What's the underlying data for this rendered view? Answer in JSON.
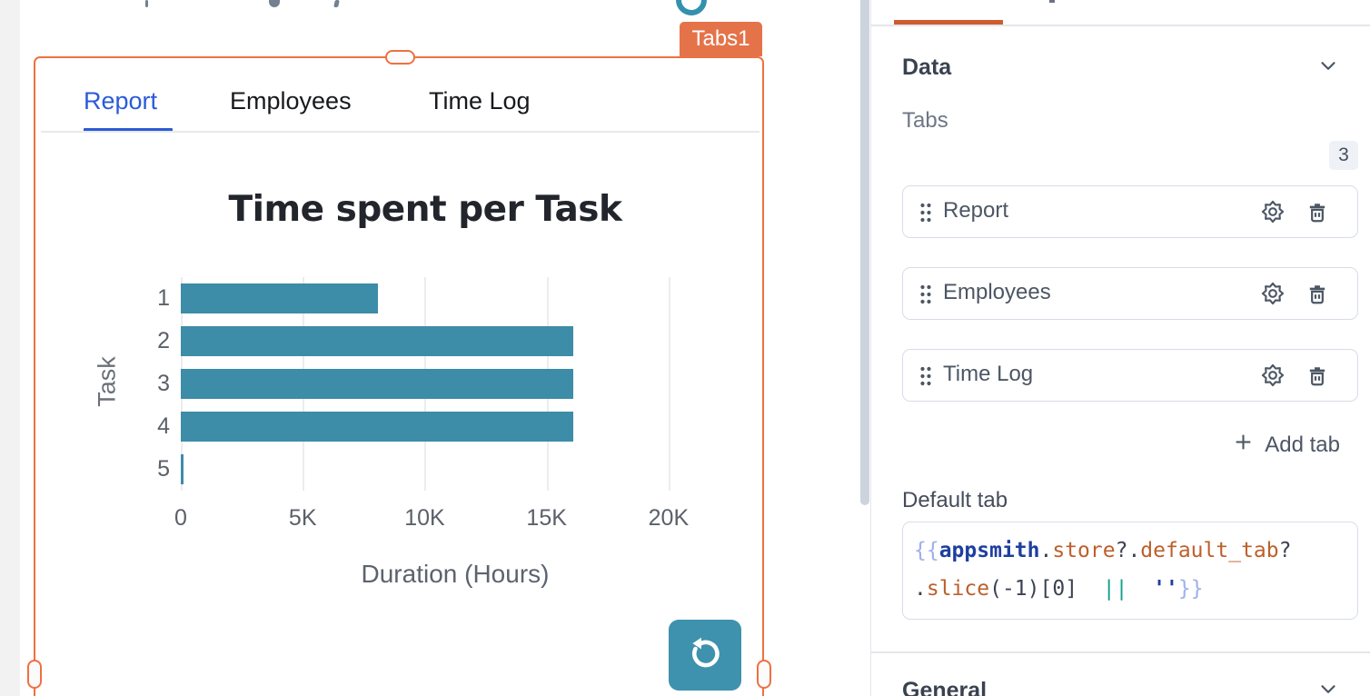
{
  "canvas": {
    "widget_badge_label": "Tabs1",
    "widget_tabs": [
      {
        "label": "Report",
        "active": true
      },
      {
        "label": "Employees",
        "active": false
      },
      {
        "label": "Time Log",
        "active": false
      }
    ]
  },
  "chart_data": {
    "type": "bar",
    "orientation": "horizontal",
    "title": "Time spent per Task",
    "xlabel": "Duration (Hours)",
    "ylabel": "Task",
    "categories": [
      "1",
      "2",
      "3",
      "4",
      "5"
    ],
    "values": [
      8100,
      16100,
      16100,
      16100,
      60
    ],
    "xticks": [
      {
        "label": "0",
        "value": 0
      },
      {
        "label": "5K",
        "value": 5000
      },
      {
        "label": "10K",
        "value": 10000
      },
      {
        "label": "15K",
        "value": 15000
      },
      {
        "label": "20K",
        "value": 20000
      }
    ],
    "xlim": [
      0,
      22500
    ],
    "grid": true,
    "legend": false,
    "bar_color": "#3d8ca8"
  },
  "panel": {
    "data_section_label": "Data",
    "tabs_field_label": "Tabs",
    "tabs_count": "3",
    "tab_items": [
      {
        "label": "Report"
      },
      {
        "label": "Employees"
      },
      {
        "label": "Time Log"
      }
    ],
    "add_tab_label": "Add tab",
    "default_tab_label": "Default tab",
    "default_tab_code": {
      "raw": "{{appsmith.store?.default_tab?.slice(-1)[0]  ||  ''}}",
      "lines": [
        [
          {
            "t": "{{",
            "c": "brace"
          },
          {
            "t": "appsmith",
            "c": "navy"
          },
          {
            "t": ".",
            "c": "dark"
          },
          {
            "t": "store",
            "c": "orange"
          },
          {
            "t": "?.",
            "c": "dark"
          },
          {
            "t": "default_tab",
            "c": "orange"
          },
          {
            "t": "?",
            "c": "dark"
          }
        ],
        [
          {
            "t": ".",
            "c": "dark"
          },
          {
            "t": "slice",
            "c": "orange"
          },
          {
            "t": "(-1)[0]",
            "c": "dark"
          },
          {
            "t": "  ",
            "c": "dark"
          },
          {
            "t": "||",
            "c": "teal"
          },
          {
            "t": "  ",
            "c": "dark"
          },
          {
            "t": "''",
            "c": "navy"
          },
          {
            "t": "}}",
            "c": "brace"
          }
        ]
      ]
    },
    "general_section_label": "General"
  },
  "colors": {
    "selection_orange": "#ee7141",
    "badge_orange": "#e5734a",
    "active_tab_blue": "#2a5bd7",
    "bar_teal": "#3d8ca8",
    "refresh_button_teal": "#3e92ad",
    "pane_accent_orange": "#cf5b2e"
  }
}
